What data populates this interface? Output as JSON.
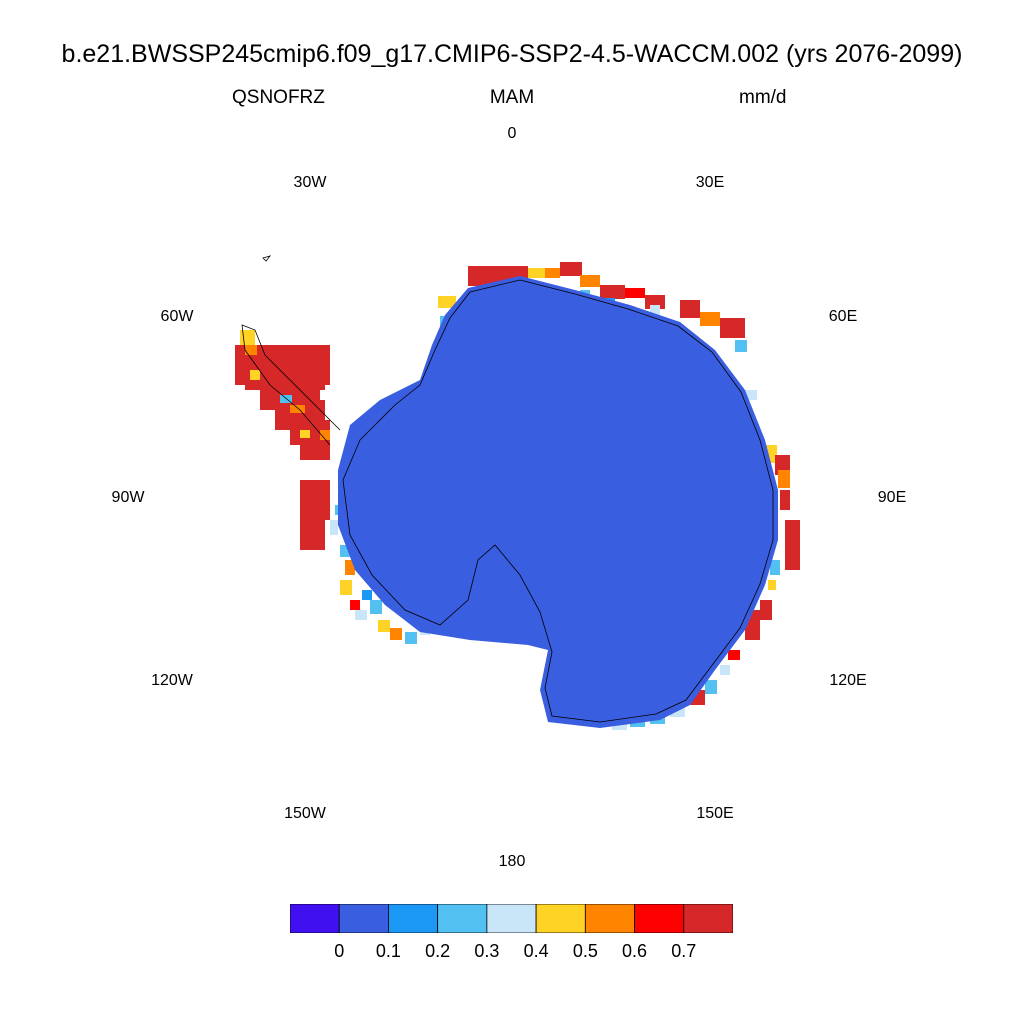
{
  "title": "b.e21.BWSSP245cmip6.f09_g17.CMIP6-SSP2-4.5-WACCM.002 (yrs 2076-2099)",
  "variable": "QSNOFRZ",
  "season": "MAM",
  "units": "mm/d",
  "longitude_labels": {
    "lon_0": "0",
    "lon_30e": "30E",
    "lon_60e": "60E",
    "lon_90e": "90E",
    "lon_120e": "120E",
    "lon_150e": "150E",
    "lon_180": "180",
    "lon_150w": "150W",
    "lon_120w": "120W",
    "lon_90w": "90W",
    "lon_60w": "60W",
    "lon_30w": "30W"
  },
  "colorbar": {
    "colors": [
      "#4010f0",
      "#3a5ee0",
      "#1b98f5",
      "#52c0f0",
      "#c8e6f8",
      "#ffd326",
      "#ff8500",
      "#ff0000",
      "#d62828"
    ],
    "labels": [
      "0",
      "0.1",
      "0.2",
      "0.3",
      "0.4",
      "0.5",
      "0.6",
      "0.7"
    ]
  },
  "map_colors": {
    "interior": "#3a5ee0",
    "coast_high": "#d62828",
    "coastline": "#000000"
  }
}
